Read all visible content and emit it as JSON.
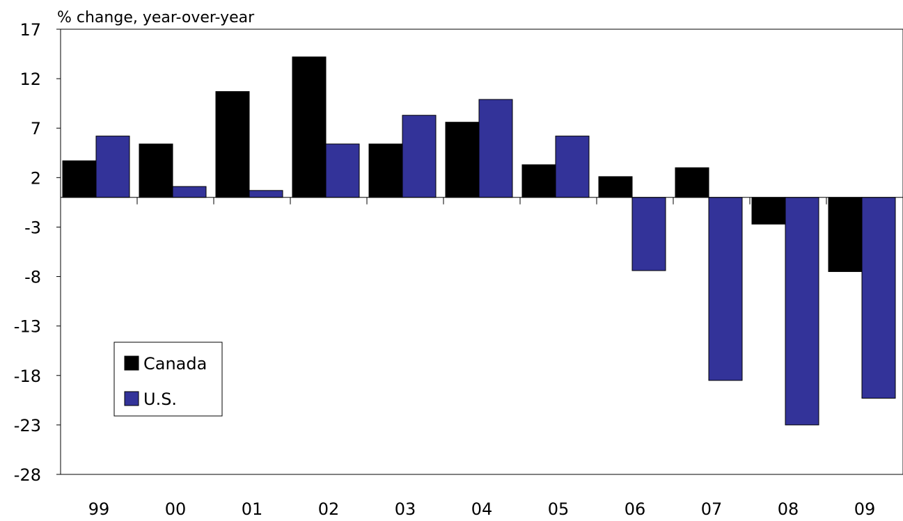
{
  "chart_data": {
    "type": "bar",
    "ylabel": "% change, year-over-year",
    "categories": [
      "99",
      "00",
      "01",
      "02",
      "03",
      "04",
      "05",
      "06",
      "07",
      "08",
      "09"
    ],
    "series": [
      {
        "name": "Canada",
        "color": "#000000",
        "values": [
          3.7,
          5.4,
          10.7,
          14.2,
          5.4,
          7.6,
          3.3,
          2.1,
          3.0,
          -2.7,
          -7.5
        ]
      },
      {
        "name": "U.S.",
        "color": "#333399",
        "values": [
          6.2,
          1.1,
          0.7,
          5.4,
          8.3,
          9.9,
          6.2,
          -7.4,
          -18.5,
          -23.0,
          -20.3
        ]
      }
    ],
    "ylim": [
      -28,
      17
    ],
    "yticks": [
      17,
      12,
      7,
      2,
      -3,
      -8,
      -13,
      -18,
      -23,
      -28
    ],
    "grid": false,
    "legend_position": "bottom-left"
  }
}
